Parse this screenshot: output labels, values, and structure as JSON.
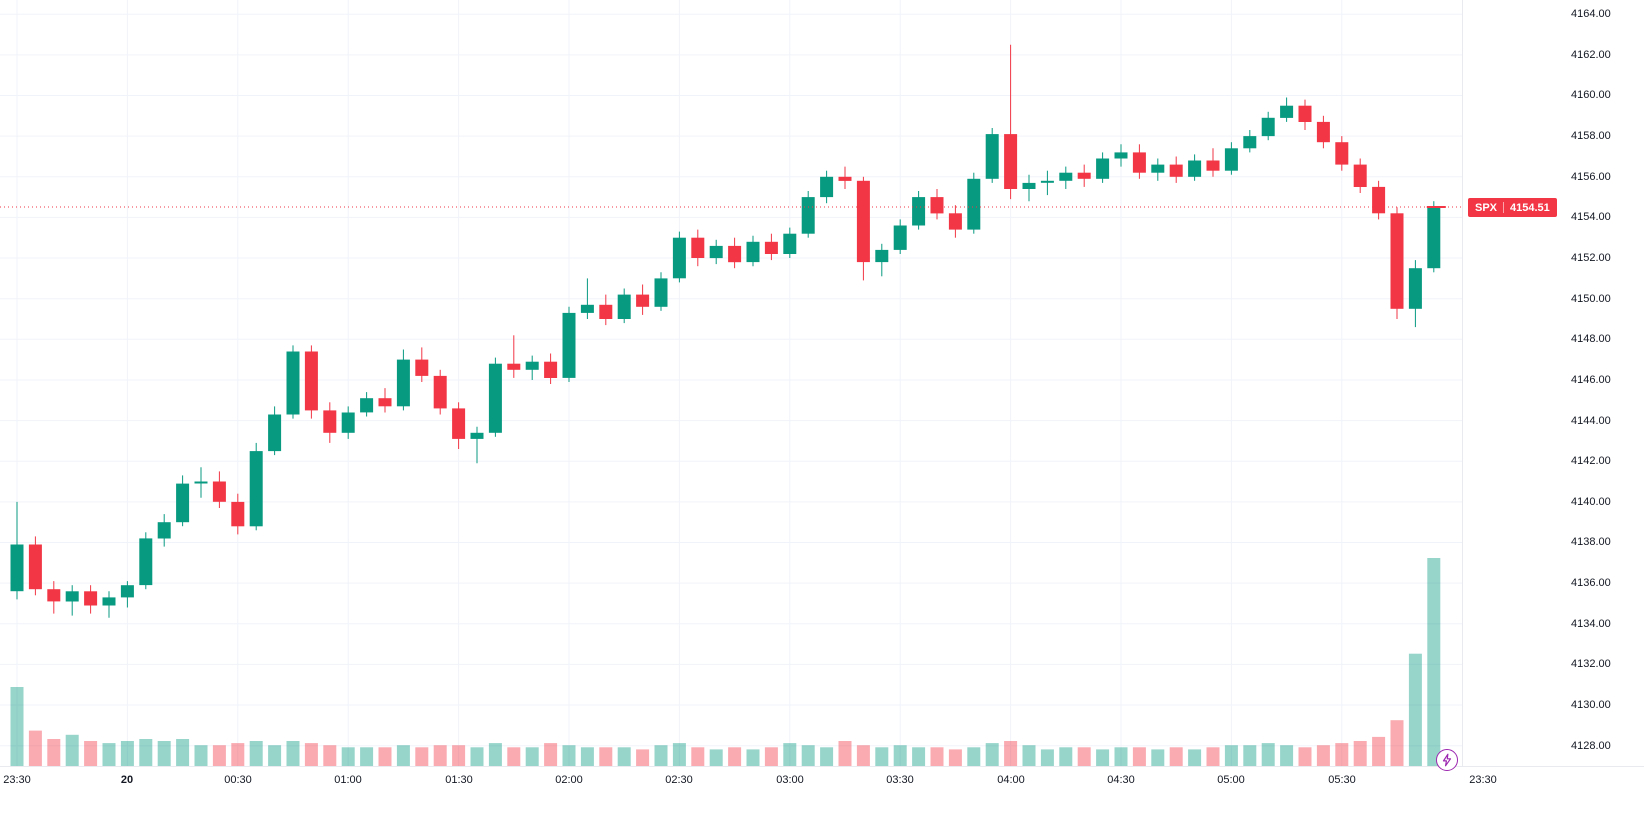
{
  "chart_data": {
    "type": "candlestick",
    "symbol": "SPX",
    "interval_minutes": 5,
    "last_price": 4154.51,
    "last_price_label": "4154.51",
    "price_line": {
      "value": 4154.51,
      "style": "dotted"
    },
    "y_range": [
      4127.0,
      4164.7
    ],
    "y_ticks": [
      4164,
      4162,
      4160,
      4158,
      4156,
      4154,
      4152,
      4150,
      4148,
      4146,
      4144,
      4142,
      4140,
      4138,
      4136,
      4134,
      4132,
      4130,
      4128
    ],
    "y_tick_decimals": 2,
    "x_ticks": [
      {
        "i": 0,
        "label": "23:30",
        "bold": false
      },
      {
        "i": 6,
        "label": "20",
        "bold": true
      },
      {
        "i": 12,
        "label": "00:30",
        "bold": false
      },
      {
        "i": 18,
        "label": "01:00",
        "bold": false
      },
      {
        "i": 24,
        "label": "01:30",
        "bold": false
      },
      {
        "i": 30,
        "label": "02:00",
        "bold": false
      },
      {
        "i": 36,
        "label": "02:30",
        "bold": false
      },
      {
        "i": 42,
        "label": "03:00",
        "bold": false
      },
      {
        "i": 48,
        "label": "03:30",
        "bold": false
      },
      {
        "i": 54,
        "label": "04:00",
        "bold": false
      },
      {
        "i": 60,
        "label": "04:30",
        "bold": false
      },
      {
        "i": 66,
        "label": "05:00",
        "bold": false
      },
      {
        "i": 72,
        "label": "05:30",
        "bold": false
      }
    ],
    "right_corner_time_label": "23:30",
    "grid": true,
    "legend_position": "none",
    "candles_format": [
      "time",
      "open",
      "high",
      "low",
      "close",
      "volume_rel"
    ],
    "candles": [
      [
        "23:30",
        4135.6,
        4140.0,
        4135.2,
        4137.9,
        38
      ],
      [
        "23:35",
        4137.9,
        4138.3,
        4135.4,
        4135.7,
        17
      ],
      [
        "23:40",
        4135.7,
        4136.1,
        4134.5,
        4135.1,
        13
      ],
      [
        "23:45",
        4135.1,
        4135.9,
        4134.4,
        4135.6,
        15
      ],
      [
        "23:50",
        4135.6,
        4135.9,
        4134.5,
        4134.9,
        12
      ],
      [
        "23:55",
        4134.9,
        4135.6,
        4134.3,
        4135.3,
        11
      ],
      [
        "00:00",
        4135.3,
        4136.1,
        4134.8,
        4135.9,
        12
      ],
      [
        "00:05",
        4135.9,
        4138.5,
        4135.7,
        4138.2,
        13
      ],
      [
        "00:10",
        4138.2,
        4139.4,
        4137.8,
        4139.0,
        12
      ],
      [
        "00:15",
        4139.0,
        4141.3,
        4138.8,
        4140.9,
        13
      ],
      [
        "00:20",
        4140.9,
        4141.7,
        4140.2,
        4141.0,
        10
      ],
      [
        "00:25",
        4141.0,
        4141.5,
        4139.7,
        4140.0,
        10
      ],
      [
        "00:30",
        4140.0,
        4140.4,
        4138.4,
        4138.8,
        11
      ],
      [
        "00:35",
        4138.8,
        4142.9,
        4138.6,
        4142.5,
        12
      ],
      [
        "00:40",
        4142.5,
        4144.7,
        4142.3,
        4144.3,
        10
      ],
      [
        "00:45",
        4144.3,
        4147.7,
        4144.1,
        4147.4,
        12
      ],
      [
        "00:50",
        4147.4,
        4147.7,
        4144.1,
        4144.5,
        11
      ],
      [
        "00:55",
        4144.5,
        4144.9,
        4142.9,
        4143.4,
        10
      ],
      [
        "01:00",
        4143.4,
        4144.7,
        4143.1,
        4144.4,
        9
      ],
      [
        "01:05",
        4144.4,
        4145.4,
        4144.2,
        4145.1,
        9
      ],
      [
        "01:10",
        4145.1,
        4145.6,
        4144.4,
        4144.7,
        9
      ],
      [
        "01:15",
        4144.7,
        4147.5,
        4144.5,
        4147.0,
        10
      ],
      [
        "01:20",
        4147.0,
        4147.6,
        4145.9,
        4146.2,
        9
      ],
      [
        "01:25",
        4146.2,
        4146.5,
        4144.3,
        4144.6,
        10
      ],
      [
        "01:30",
        4144.6,
        4144.9,
        4142.6,
        4143.1,
        10
      ],
      [
        "01:35",
        4143.1,
        4143.7,
        4141.9,
        4143.4,
        9
      ],
      [
        "01:40",
        4143.4,
        4147.1,
        4143.2,
        4146.8,
        11
      ],
      [
        "01:45",
        4146.8,
        4148.2,
        4146.1,
        4146.5,
        9
      ],
      [
        "01:50",
        4146.5,
        4147.2,
        4146.0,
        4146.9,
        9
      ],
      [
        "01:55",
        4146.9,
        4147.3,
        4145.8,
        4146.1,
        11
      ],
      [
        "02:00",
        4146.1,
        4149.6,
        4145.9,
        4149.3,
        10
      ],
      [
        "02:05",
        4149.3,
        4151.0,
        4149.0,
        4149.7,
        9
      ],
      [
        "02:10",
        4149.7,
        4150.2,
        4148.7,
        4149.0,
        9
      ],
      [
        "02:15",
        4149.0,
        4150.5,
        4148.8,
        4150.2,
        9
      ],
      [
        "02:20",
        4150.2,
        4150.7,
        4149.2,
        4149.6,
        8
      ],
      [
        "02:25",
        4149.6,
        4151.3,
        4149.4,
        4151.0,
        10
      ],
      [
        "02:30",
        4151.0,
        4153.3,
        4150.8,
        4153.0,
        11
      ],
      [
        "02:35",
        4153.0,
        4153.4,
        4151.6,
        4152.0,
        9
      ],
      [
        "02:40",
        4152.0,
        4152.9,
        4151.7,
        4152.6,
        8
      ],
      [
        "02:45",
        4152.6,
        4153.0,
        4151.5,
        4151.8,
        9
      ],
      [
        "02:50",
        4151.8,
        4153.1,
        4151.6,
        4152.8,
        8
      ],
      [
        "02:55",
        4152.8,
        4153.2,
        4151.9,
        4152.2,
        9
      ],
      [
        "03:00",
        4152.2,
        4153.5,
        4152.0,
        4153.2,
        11
      ],
      [
        "03:05",
        4153.2,
        4155.3,
        4153.0,
        4155.0,
        10
      ],
      [
        "03:10",
        4155.0,
        4156.3,
        4154.7,
        4156.0,
        9
      ],
      [
        "03:15",
        4156.0,
        4156.5,
        4155.4,
        4155.8,
        12
      ],
      [
        "03:20",
        4155.8,
        4156.0,
        4150.9,
        4151.8,
        10
      ],
      [
        "03:25",
        4151.8,
        4152.7,
        4151.1,
        4152.4,
        9
      ],
      [
        "03:30",
        4152.4,
        4153.9,
        4152.2,
        4153.6,
        10
      ],
      [
        "03:35",
        4153.6,
        4155.3,
        4153.4,
        4155.0,
        9
      ],
      [
        "03:40",
        4155.0,
        4155.4,
        4153.9,
        4154.2,
        9
      ],
      [
        "03:45",
        4154.2,
        4154.6,
        4153.0,
        4153.4,
        8
      ],
      [
        "03:50",
        4153.4,
        4156.2,
        4153.2,
        4155.9,
        9
      ],
      [
        "03:55",
        4155.9,
        4158.4,
        4155.7,
        4158.1,
        11
      ],
      [
        "04:00",
        4158.1,
        4162.5,
        4154.9,
        4155.4,
        12
      ],
      [
        "04:05",
        4155.4,
        4156.1,
        4154.8,
        4155.7,
        10
      ],
      [
        "04:10",
        4155.7,
        4156.3,
        4155.1,
        4155.8,
        8
      ],
      [
        "04:15",
        4155.8,
        4156.5,
        4155.4,
        4156.2,
        9
      ],
      [
        "04:20",
        4156.2,
        4156.6,
        4155.5,
        4155.9,
        9
      ],
      [
        "04:25",
        4155.9,
        4157.2,
        4155.7,
        4156.9,
        8
      ],
      [
        "04:30",
        4156.9,
        4157.6,
        4156.5,
        4157.2,
        9
      ],
      [
        "04:35",
        4157.2,
        4157.6,
        4155.9,
        4156.2,
        9
      ],
      [
        "04:40",
        4156.2,
        4156.9,
        4155.8,
        4156.6,
        8
      ],
      [
        "04:45",
        4156.6,
        4157.0,
        4155.7,
        4156.0,
        9
      ],
      [
        "04:50",
        4156.0,
        4157.1,
        4155.8,
        4156.8,
        8
      ],
      [
        "04:55",
        4156.8,
        4157.4,
        4156.0,
        4156.3,
        9
      ],
      [
        "05:00",
        4156.3,
        4157.7,
        4156.1,
        4157.4,
        10
      ],
      [
        "05:05",
        4157.4,
        4158.3,
        4157.2,
        4158.0,
        10
      ],
      [
        "05:10",
        4158.0,
        4159.2,
        4157.8,
        4158.9,
        11
      ],
      [
        "05:15",
        4158.9,
        4159.9,
        4158.7,
        4159.5,
        10
      ],
      [
        "05:20",
        4159.5,
        4159.8,
        4158.3,
        4158.7,
        9
      ],
      [
        "05:25",
        4158.7,
        4159.0,
        4157.4,
        4157.7,
        10
      ],
      [
        "05:30",
        4157.7,
        4158.0,
        4156.3,
        4156.6,
        11
      ],
      [
        "05:35",
        4156.6,
        4156.9,
        4155.2,
        4155.5,
        12
      ],
      [
        "05:40",
        4155.5,
        4155.8,
        4153.9,
        4154.2,
        14
      ],
      [
        "05:45",
        4154.2,
        4154.5,
        4149.0,
        4149.5,
        22
      ],
      [
        "05:50",
        4149.5,
        4151.9,
        4148.6,
        4151.5,
        54
      ],
      [
        "05:55",
        4151.5,
        4154.8,
        4151.3,
        4154.51,
        100
      ]
    ]
  },
  "colors": {
    "up": "#089981",
    "down": "#f23645",
    "vol_up": "rgba(8,153,129,0.42)",
    "vol_down": "rgba(242,54,69,0.42)",
    "grid": "#f0f3fa",
    "axis_text": "#131722",
    "price_line": "#f23645",
    "tag_bg": "#f23645",
    "tag_text": "#ffffff",
    "bolt": "#9c27b0",
    "background": "#ffffff"
  }
}
